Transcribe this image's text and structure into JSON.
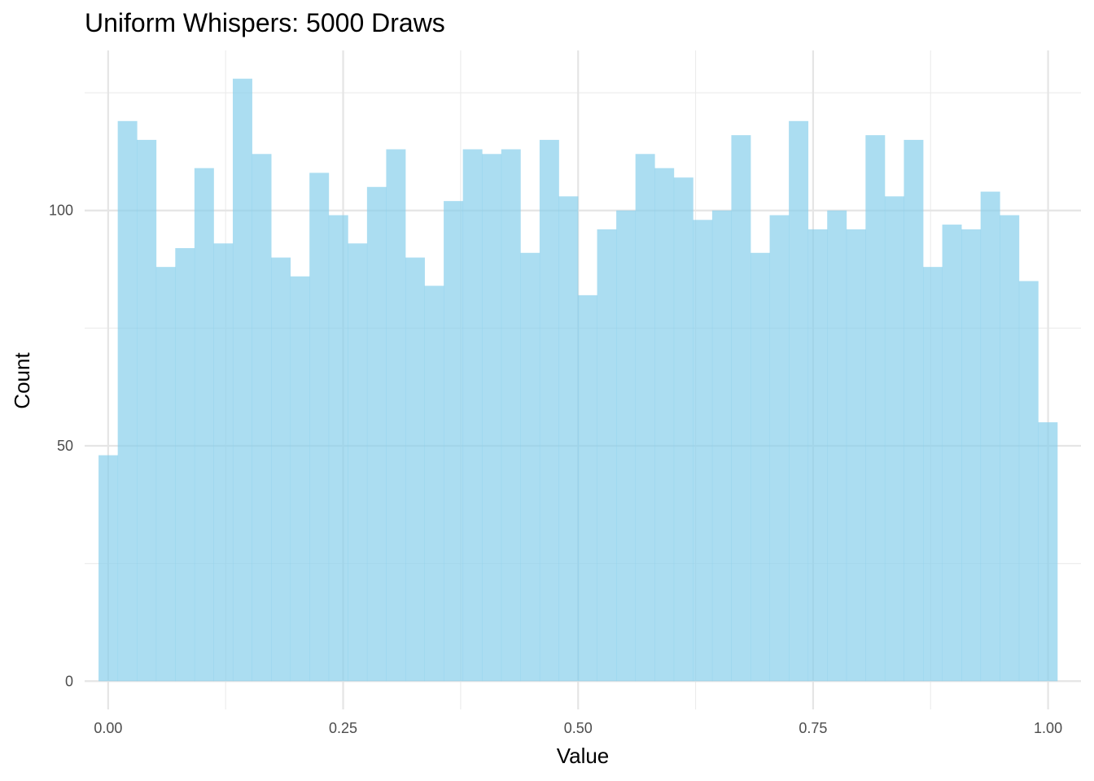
{
  "chart_data": {
    "type": "bar",
    "title": "Uniform Whispers: 5000 Draws",
    "xlabel": "Value",
    "ylabel": "Count",
    "bar_color": "#87CEEB",
    "grid": true,
    "xlim": [
      -0.025,
      1.035
    ],
    "ylim": [
      -6,
      134
    ],
    "x_ticks": [
      {
        "value": 0.0,
        "label": "0.00"
      },
      {
        "value": 0.25,
        "label": "0.25"
      },
      {
        "value": 0.5,
        "label": "0.50"
      },
      {
        "value": 0.75,
        "label": "0.75"
      },
      {
        "value": 1.0,
        "label": "1.00"
      }
    ],
    "y_ticks": [
      {
        "value": 0,
        "label": "0"
      },
      {
        "value": 50,
        "label": "50"
      },
      {
        "value": 100,
        "label": "100"
      }
    ],
    "bin_start": -0.0102,
    "bin_width": 0.0204,
    "values": [
      48,
      119,
      115,
      88,
      92,
      109,
      93,
      128,
      112,
      90,
      86,
      108,
      99,
      93,
      105,
      113,
      90,
      84,
      102,
      113,
      112,
      113,
      91,
      115,
      103,
      82,
      96,
      100,
      112,
      109,
      107,
      98,
      100,
      116,
      91,
      99,
      119,
      96,
      100,
      96,
      116,
      103,
      115,
      88,
      97,
      96,
      104,
      99,
      85,
      55
    ]
  }
}
